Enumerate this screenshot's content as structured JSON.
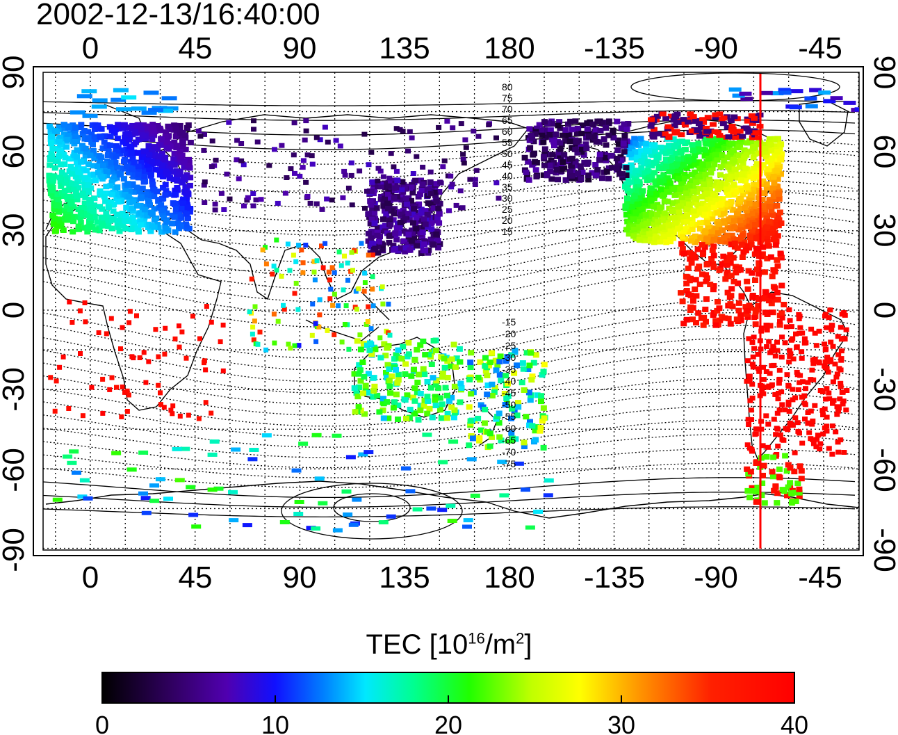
{
  "title": "2002-12-13/16:40:00",
  "map": {
    "top_lon_labels": [
      "0",
      "45",
      "90",
      "135",
      "180",
      "-135",
      "-90",
      "-45"
    ],
    "bottom_lon_labels": [
      "0",
      "45",
      "90",
      "135",
      "180",
      "-135",
      "-90",
      "-45"
    ],
    "left_lat_labels": [
      "90",
      "60",
      "30",
      "0",
      "-30",
      "-60",
      "-90"
    ],
    "right_lat_labels": [
      "90",
      "60",
      "30",
      "0",
      "-30",
      "-60",
      "-90"
    ],
    "grid": "dotted every 15 degrees",
    "meridian_marker": {
      "lon": -70,
      "color": "#ff0000"
    },
    "mag_lat_labels_north": [
      "80",
      "75",
      "70",
      "65",
      "60",
      "55",
      "50",
      "45",
      "40",
      "35",
      "30",
      "25",
      "20",
      "15"
    ],
    "mag_lat_labels_south": [
      "-15",
      "-20",
      "-25",
      "-30",
      "-35",
      "-40",
      "-45",
      "-50",
      "-55",
      "-60",
      "-65",
      "-70",
      "-75"
    ]
  },
  "colorbar": {
    "title_main": "TEC  [10",
    "title_sup1": "16",
    "title_mid": "/m",
    "title_sup2": "2",
    "title_end": "]",
    "min": 0,
    "max": 40,
    "tick_labels": [
      "0",
      "10",
      "20",
      "30",
      "40"
    ],
    "colormap": [
      "#000000",
      "#3c0070",
      "#5a00c0",
      "#2020ff",
      "#0090ff",
      "#00e0ff",
      "#00ff80",
      "#40ff00",
      "#ffff00",
      "#ff9000",
      "#ff2000",
      "#ff0000"
    ]
  },
  "tec_regions": [
    {
      "name": "europe",
      "value": 15
    },
    {
      "name": "north-america",
      "value": 32
    },
    {
      "name": "japan-east-asia",
      "value": 6
    },
    {
      "name": "siberia-alaska",
      "value": 5
    },
    {
      "name": "south-america",
      "value": 40
    },
    {
      "name": "australia",
      "value": 22
    },
    {
      "name": "antarctica",
      "value": 14
    }
  ]
}
